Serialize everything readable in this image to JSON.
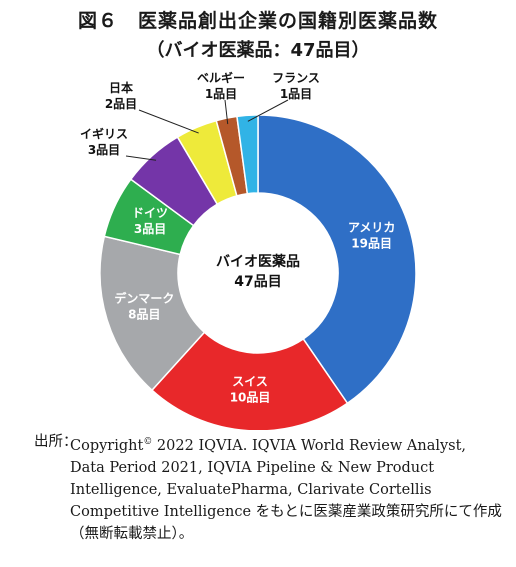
{
  "figure": {
    "title": "図６　医薬品創出企業の国籍別医薬品数",
    "subtitle": "（バイオ医薬品：47品目）"
  },
  "chart_data": {
    "type": "pie",
    "center_label": [
      "バイオ医薬品",
      "47品目"
    ],
    "total": 47,
    "slices": [
      {
        "name": "アメリカ",
        "value": 19,
        "value_label": "19品目",
        "color": "#2f6fc6"
      },
      {
        "name": "スイス",
        "value": 10,
        "value_label": "10品目",
        "color": "#e8282a"
      },
      {
        "name": "デンマーク",
        "value": 8,
        "value_label": "8品目",
        "color": "#a6a8ab"
      },
      {
        "name": "ドイツ",
        "value": 3,
        "value_label": "3品目",
        "color": "#2eae4f"
      },
      {
        "name": "イギリス",
        "value": 3,
        "value_label": "3品目",
        "color": "#7435a8"
      },
      {
        "name": "日本",
        "value": 2,
        "value_label": "2品目",
        "color": "#eeea3a"
      },
      {
        "name": "ベルギー",
        "value": 1,
        "value_label": "1品目",
        "color": "#b5582a"
      },
      {
        "name": "フランス",
        "value": 1,
        "value_label": "1品目",
        "color": "#31b3e6"
      }
    ]
  },
  "source": {
    "prefix": "出所：",
    "text_before_sup": "Copyright",
    "sup": "©",
    "text_after_sup": " 2022 IQVIA. IQVIA World Review Analyst, Data Period 2021, IQVIA Pipeline & New Product Intelligence, EvaluatePharma, Clarivate Cortellis Competitive Intelligence をもとに医薬産業政策研究所にて作成（無断転載禁止）。"
  }
}
